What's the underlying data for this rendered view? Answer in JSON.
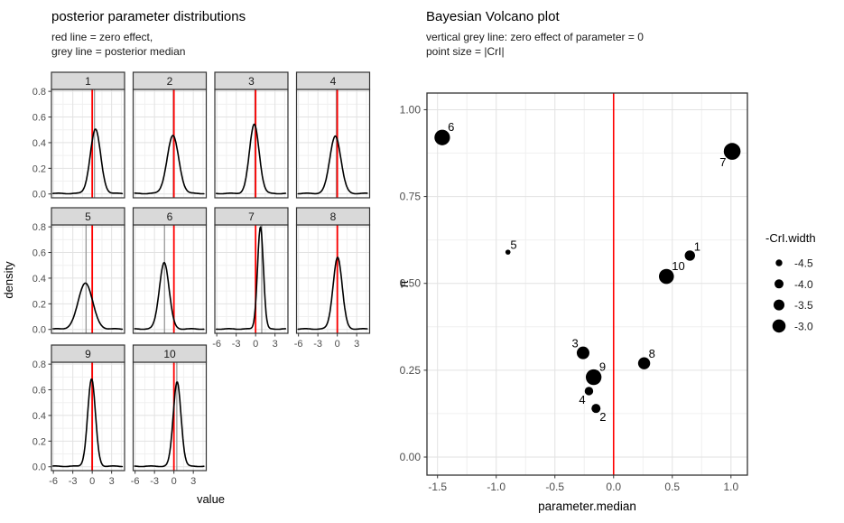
{
  "colors": {
    "zero_line": "#ff0000",
    "median_line": "#999999",
    "curve": "#000000",
    "point": "#000000",
    "panel_border": "#333333",
    "strip_fill": "#d9d9d9",
    "grid_major": "#e2e2e2",
    "grid_minor": "#f0f0f0",
    "axis_text": "#4d4d4d",
    "tick": "#333333",
    "background": "#ffffff"
  },
  "chart_data": [
    {
      "type": "line",
      "subtype": "faceted-density",
      "title": "posterior parameter distributions",
      "subtitle": "red line = zero effect,\ngrey line = posterior median",
      "xlabel": "value",
      "ylabel": "density",
      "x_tick_values": [
        -6,
        -3,
        0,
        3
      ],
      "x_tick_labels": [
        "-6",
        "-3",
        "0",
        "3"
      ],
      "y_tick_values": [
        0.0,
        0.2,
        0.4,
        0.6,
        0.8
      ],
      "y_tick_labels": [
        "0.0",
        "0.2",
        "0.4",
        "0.6",
        "0.8"
      ],
      "x_minor": [
        -4.5,
        -1.5,
        1.5,
        4.5
      ],
      "y_minor": [
        0.1,
        0.3,
        0.5,
        0.7
      ],
      "xlim": [
        -6.3,
        5.0
      ],
      "ylim": [
        -0.03,
        0.815
      ],
      "zero_line_x": 0,
      "grid": true,
      "facets": [
        {
          "label": "1",
          "median": 0.35,
          "peak_x": 0.5,
          "peak_height": 0.5,
          "sigma": 0.8
        },
        {
          "label": "2",
          "median": -0.1,
          "peak_x": -0.15,
          "peak_height": 0.45,
          "sigma": 0.9
        },
        {
          "label": "3",
          "median": -0.1,
          "peak_x": -0.2,
          "peak_height": 0.54,
          "sigma": 0.75
        },
        {
          "label": "4",
          "median": -0.15,
          "peak_x": -0.3,
          "peak_height": 0.45,
          "sigma": 0.85
        },
        {
          "label": "5",
          "median": -0.95,
          "peak_x": -1.05,
          "peak_height": 0.36,
          "sigma": 1.1
        },
        {
          "label": "6",
          "median": -1.45,
          "peak_x": -1.5,
          "peak_height": 0.52,
          "sigma": 0.75
        },
        {
          "label": "7",
          "median": 0.95,
          "peak_x": 0.75,
          "peak_height": 0.8,
          "sigma": 0.45
        },
        {
          "label": "8",
          "median": 0.05,
          "peak_x": 0.05,
          "peak_height": 0.56,
          "sigma": 0.7
        },
        {
          "label": "9",
          "median": -0.05,
          "peak_x": -0.1,
          "peak_height": 0.68,
          "sigma": 0.6
        },
        {
          "label": "10",
          "median": 0.45,
          "peak_x": 0.5,
          "peak_height": 0.66,
          "sigma": 0.6
        }
      ]
    },
    {
      "type": "scatter",
      "subtype": "volcano",
      "title": "Bayesian Volcano plot",
      "subtitle": "vertical grey line: zero effect of parameter = 0\npoint size = |CrI|",
      "xlabel": "parameter.median",
      "ylabel": "π",
      "x_tick_values": [
        -1.5,
        -1.0,
        -0.5,
        0.0,
        0.5,
        1.0
      ],
      "x_tick_labels": [
        "-1.5",
        "-1.0",
        "-0.5",
        "0.0",
        "0.5",
        "1.0"
      ],
      "y_tick_values": [
        0.0,
        0.25,
        0.5,
        0.75,
        1.0
      ],
      "y_tick_labels": [
        "0.00",
        "0.25",
        "0.50",
        "0.75",
        "1.00"
      ],
      "x_minor": [
        -1.25,
        -0.75,
        -0.25,
        0.25,
        0.75
      ],
      "y_minor": [
        0.125,
        0.375,
        0.625,
        0.875
      ],
      "xlim": [
        -1.59,
        1.14
      ],
      "ylim": [
        -0.052,
        1.048
      ],
      "zero_line_x": 0,
      "grid": true,
      "legend_position": "right",
      "points": [
        {
          "label": "1",
          "x": 0.65,
          "y": 0.58,
          "r": 5.7,
          "label_pos": "tr"
        },
        {
          "label": "2",
          "x": -0.15,
          "y": 0.14,
          "r": 5.0,
          "label_pos": "br"
        },
        {
          "label": "3",
          "x": -0.26,
          "y": 0.3,
          "r": 7.0,
          "label_pos": "tl"
        },
        {
          "label": "4",
          "x": -0.21,
          "y": 0.19,
          "r": 4.7,
          "label_pos": "bl"
        },
        {
          "label": "5",
          "x": -0.9,
          "y": 0.59,
          "r": 2.8,
          "label_pos": "tr"
        },
        {
          "label": "6",
          "x": -1.46,
          "y": 0.92,
          "r": 8.6,
          "label_pos": "tr"
        },
        {
          "label": "7",
          "x": 1.01,
          "y": 0.88,
          "r": 9.3,
          "label_pos": "bl"
        },
        {
          "label": "8",
          "x": 0.26,
          "y": 0.27,
          "r": 6.7,
          "label_pos": "tr"
        },
        {
          "label": "9",
          "x": -0.17,
          "y": 0.23,
          "r": 8.7,
          "label_pos": "tr"
        },
        {
          "label": "10",
          "x": 0.45,
          "y": 0.52,
          "r": 8.3,
          "label_pos": "tr"
        }
      ],
      "legend": {
        "title": "-CrI.width",
        "entries": [
          {
            "label": "-4.5",
            "r": 3.7
          },
          {
            "label": "-4.0",
            "r": 5.0
          },
          {
            "label": "-3.5",
            "r": 6.0
          },
          {
            "label": "-3.0",
            "r": 7.3
          }
        ]
      }
    }
  ]
}
